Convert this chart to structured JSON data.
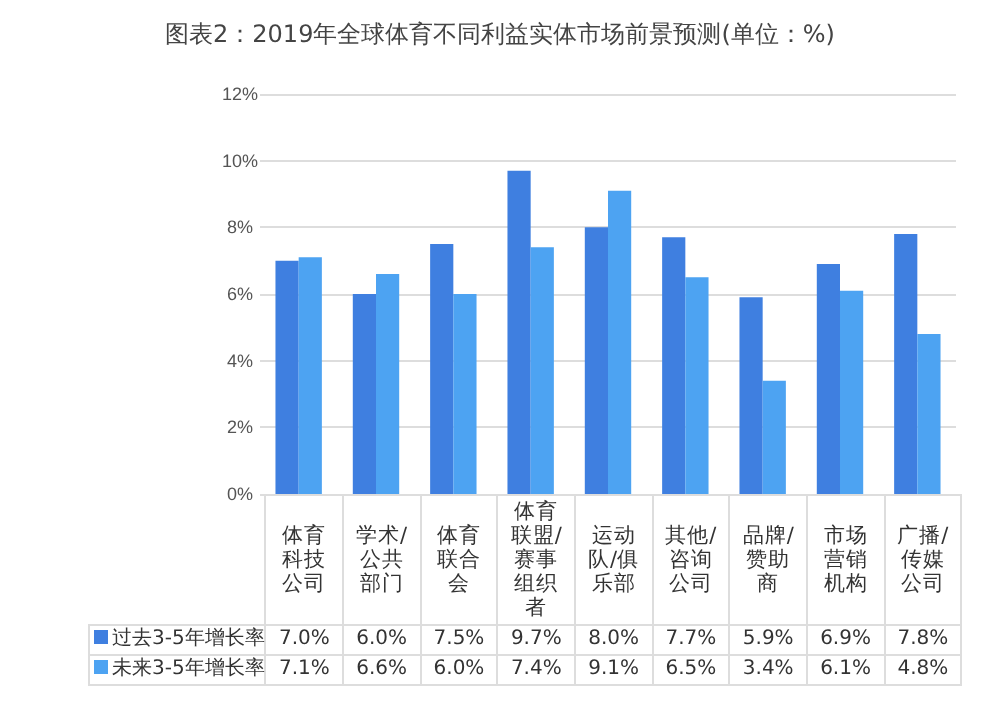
{
  "chart_data": {
    "type": "bar",
    "title": "图表2：2019年全球体育不同利益实体市场前景预测(单位：%)",
    "categories": [
      "体育科技公司",
      "学术/公共部门",
      "体育联合会",
      "体育联盟/赛事组织者",
      "运动队/俱乐部",
      "其他/咨询公司",
      "品牌/赞助商",
      "市场营销机构",
      "广播/传媒公司"
    ],
    "series": [
      {
        "name": "过去3-5年增长率",
        "color": "#3f7fe0",
        "values": [
          7.0,
          6.0,
          7.5,
          9.7,
          8.0,
          7.7,
          5.9,
          6.9,
          7.8
        ],
        "value_labels": [
          "7.0%",
          "6.0%",
          "7.5%",
          "9.7%",
          "8.0%",
          "7.7%",
          "5.9%",
          "6.9%",
          "7.8%"
        ]
      },
      {
        "name": "未来3-5年增长率",
        "color": "#4da3f2",
        "values": [
          7.1,
          6.6,
          6.0,
          7.4,
          9.1,
          6.5,
          3.4,
          6.1,
          4.8
        ],
        "value_labels": [
          "7.1%",
          "6.6%",
          "6.0%",
          "7.4%",
          "9.1%",
          "6.5%",
          "3.4%",
          "6.1%",
          "4.8%"
        ]
      }
    ],
    "ylim": [
      0,
      12
    ],
    "yticks": [
      {
        "value": 0,
        "label": "0%"
      },
      {
        "value": 2,
        "label": "2%"
      },
      {
        "value": 4,
        "label": "4%"
      },
      {
        "value": 6,
        "label": "6%"
      },
      {
        "value": 8,
        "label": "8%"
      },
      {
        "value": 10,
        "label": "10%"
      },
      {
        "value": 12,
        "label": "12%"
      }
    ],
    "grid": "y",
    "legend": "bottom left"
  }
}
